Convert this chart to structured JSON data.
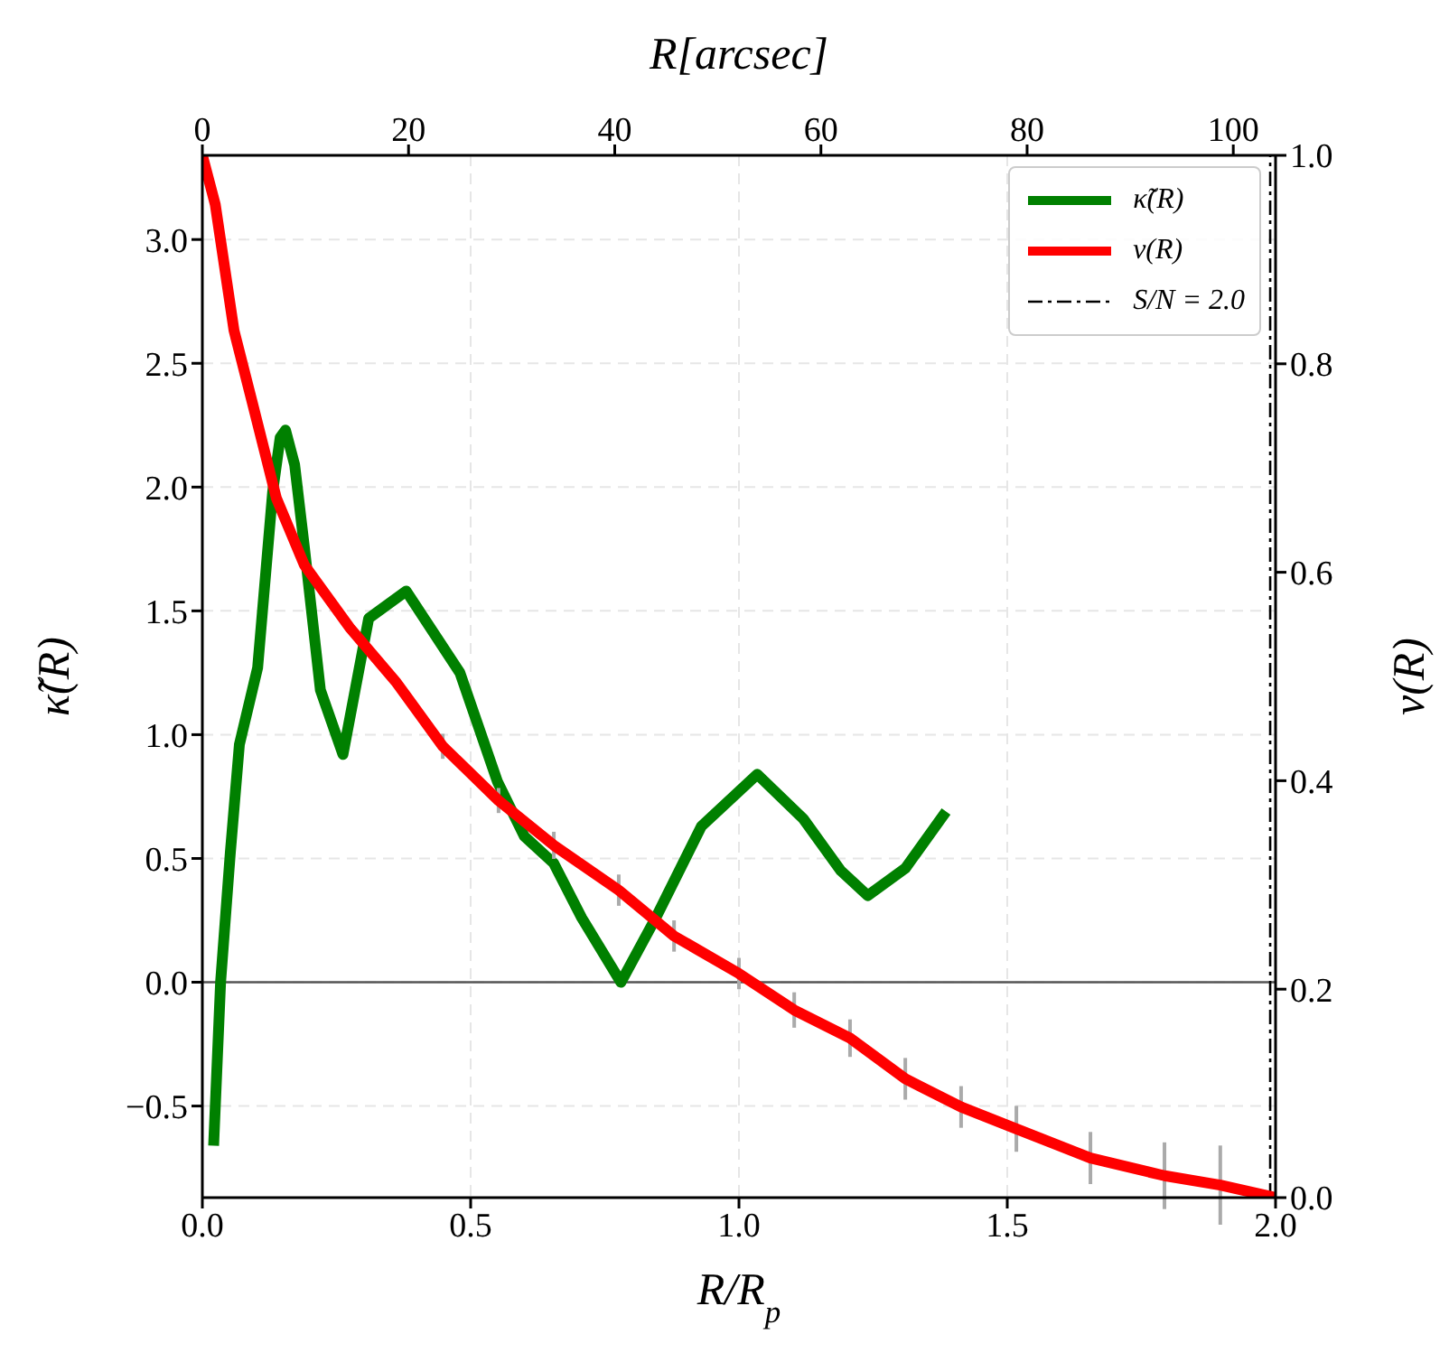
{
  "chart_data": {
    "type": "line",
    "xlabel": "R/R$_{p}$",
    "ylabel": "κ̃(R)",
    "y2label": "ν(R)",
    "x2label": "R[arcsec]",
    "xlim": [
      0,
      2.0
    ],
    "xticks": [
      {
        "value": 0,
        "label": "0.0"
      },
      0.5,
      {
        "value": 1,
        "label": "1.0"
      },
      1.5,
      {
        "value": 2,
        "label": "2.0"
      }
    ],
    "ylim": [
      -0.87,
      3.34
    ],
    "yticks": [
      {
        "value": -0.5,
        "label": "−0.5"
      },
      {
        "value": 0,
        "label": "0.0"
      },
      0.5,
      {
        "value": 1,
        "label": "1.0"
      },
      1.5,
      {
        "value": 2,
        "label": "2.0"
      },
      2.5,
      {
        "value": 3,
        "label": "3.0"
      }
    ],
    "y2lim": [
      0,
      1.0
    ],
    "y2ticks": [
      {
        "value": 0,
        "label": "0.0"
      },
      0.2,
      0.4,
      0.6,
      0.8,
      {
        "value": 1,
        "label": "1.0"
      }
    ],
    "x2lim": [
      0,
      104.1
    ],
    "x2ticks": [
      0,
      20,
      40,
      60,
      80,
      100
    ],
    "grid": true,
    "legend": "top right",
    "marker": "none",
    "line_style": "solid",
    "series": [
      {
        "name": "κ̃(R)",
        "color": "#008000",
        "x": [
          0.021,
          0.034,
          0.052,
          0.069,
          0.103,
          0.131,
          0.145,
          0.155,
          0.172,
          0.19,
          0.22,
          0.262,
          0.31,
          0.38,
          0.48,
          0.55,
          0.6,
          0.655,
          0.707,
          0.78,
          0.845,
          0.93,
          1.034,
          1.12,
          1.19,
          1.24,
          1.31,
          1.386
        ],
        "values": [
          -0.66,
          0.0,
          0.52,
          0.96,
          1.27,
          1.98,
          2.2,
          2.23,
          2.09,
          1.76,
          1.18,
          0.92,
          1.47,
          1.58,
          1.25,
          0.81,
          0.59,
          0.48,
          0.26,
          0.0,
          0.26,
          0.63,
          0.84,
          0.66,
          0.45,
          0.35,
          0.46,
          0.69
        ]
      },
      {
        "name": "ν(R)",
        "color": "#ff0000",
        "axis": "y2",
        "x": [
          0,
          0.024,
          0.059,
          0.093,
          0.138,
          0.19,
          0.276,
          0.362,
          0.448,
          0.552,
          0.655,
          0.776,
          0.879,
          1.0,
          1.103,
          1.207,
          1.31,
          1.414,
          1.517,
          1.655,
          1.793,
          1.897,
          2.0
        ],
        "values": [
          1.0,
          0.953,
          0.832,
          0.763,
          0.671,
          0.607,
          0.546,
          0.494,
          0.433,
          0.381,
          0.338,
          0.295,
          0.251,
          0.215,
          0.18,
          0.153,
          0.114,
          0.087,
          0.066,
          0.038,
          0.021,
          0.012,
          0.0
        ],
        "errors": [
          null,
          null,
          null,
          null,
          null,
          null,
          null,
          null,
          0.012,
          0.012,
          0.013,
          0.015,
          0.015,
          0.015,
          0.017,
          0.018,
          0.02,
          0.02,
          0.022,
          0.025,
          0.032,
          0.038,
          null
        ]
      }
    ],
    "ref_lines": [
      {
        "axis": "y",
        "value": 0.0,
        "color": "#555555",
        "line_style": "solid"
      },
      {
        "axis": "x",
        "value": 1.99,
        "label": "S/N = 2.0",
        "color": "#000000",
        "line_style": "dashdot"
      }
    ]
  }
}
